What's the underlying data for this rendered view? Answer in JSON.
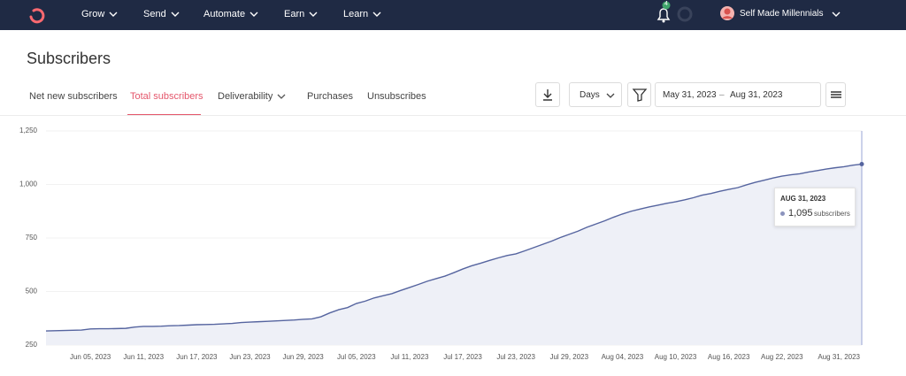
{
  "nav": {
    "items": [
      "Grow",
      "Send",
      "Automate",
      "Earn",
      "Learn"
    ],
    "notification_count": 4,
    "account": "Self Made Millennials"
  },
  "header": {
    "title": "Subscribers"
  },
  "tabs": [
    "Net new subscribers",
    "Total subscribers",
    "Deliverability",
    "Purchases",
    "Unsubscribes"
  ],
  "controls": {
    "interval": "Days",
    "date_start": "May 31, 2023",
    "date_separator": "–",
    "date_end": "Aug 31, 2023"
  },
  "tooltip": {
    "date": "AUG 31, 2023",
    "value": "1,095",
    "unit": "subscribers"
  },
  "chart_data": {
    "type": "area",
    "color": "#55649f",
    "fill_color": "#eef0f7",
    "grid": true,
    "ylim": [
      250,
      1250
    ],
    "yticks": [
      250,
      500,
      750,
      {
        "value": 1000,
        "label": "1,000"
      },
      {
        "value": 1250,
        "label": "1,250"
      }
    ],
    "categories": [
      null,
      null,
      null,
      null,
      null,
      "Jun 05, 2023",
      null,
      null,
      null,
      null,
      null,
      "Jun 11, 2023",
      null,
      null,
      null,
      null,
      null,
      "Jun 17, 2023",
      null,
      null,
      null,
      null,
      null,
      "Jun 23, 2023",
      null,
      null,
      null,
      null,
      null,
      "Jun 29, 2023",
      null,
      null,
      null,
      null,
      null,
      "Jul 05, 2023",
      null,
      null,
      null,
      null,
      null,
      "Jul 11, 2023",
      null,
      null,
      null,
      null,
      null,
      "Jul 17, 2023",
      null,
      null,
      null,
      null,
      null,
      "Jul 23, 2023",
      null,
      null,
      null,
      null,
      null,
      "Jul 29, 2023",
      null,
      null,
      null,
      null,
      null,
      "Aug 04, 2023",
      null,
      null,
      null,
      null,
      null,
      "Aug 10, 2023",
      null,
      null,
      null,
      null,
      null,
      "Aug 16, 2023",
      null,
      null,
      null,
      null,
      null,
      "Aug 22, 2023",
      null,
      null,
      null,
      null,
      null,
      null,
      null,
      null,
      "Aug 31, 2023"
    ],
    "values": [
      316,
      317,
      318,
      319,
      320,
      325,
      326,
      326,
      327,
      328,
      334,
      337,
      337,
      338,
      340,
      341,
      343,
      345,
      346,
      347,
      349,
      351,
      355,
      357,
      359,
      361,
      363,
      365,
      367,
      370,
      372,
      382,
      400,
      415,
      425,
      444,
      455,
      470,
      480,
      490,
      505,
      519,
      533,
      548,
      560,
      572,
      588,
      605,
      620,
      632,
      645,
      657,
      668,
      676,
      690,
      705,
      720,
      735,
      752,
      767,
      782,
      800,
      815,
      830,
      847,
      862,
      875,
      885,
      895,
      903,
      912,
      919,
      928,
      938,
      950,
      958,
      968,
      977,
      985,
      998,
      1010,
      1020,
      1030,
      1039,
      1045,
      1050,
      1058,
      1065,
      1072,
      1078,
      1083,
      1090,
      1095
    ]
  }
}
